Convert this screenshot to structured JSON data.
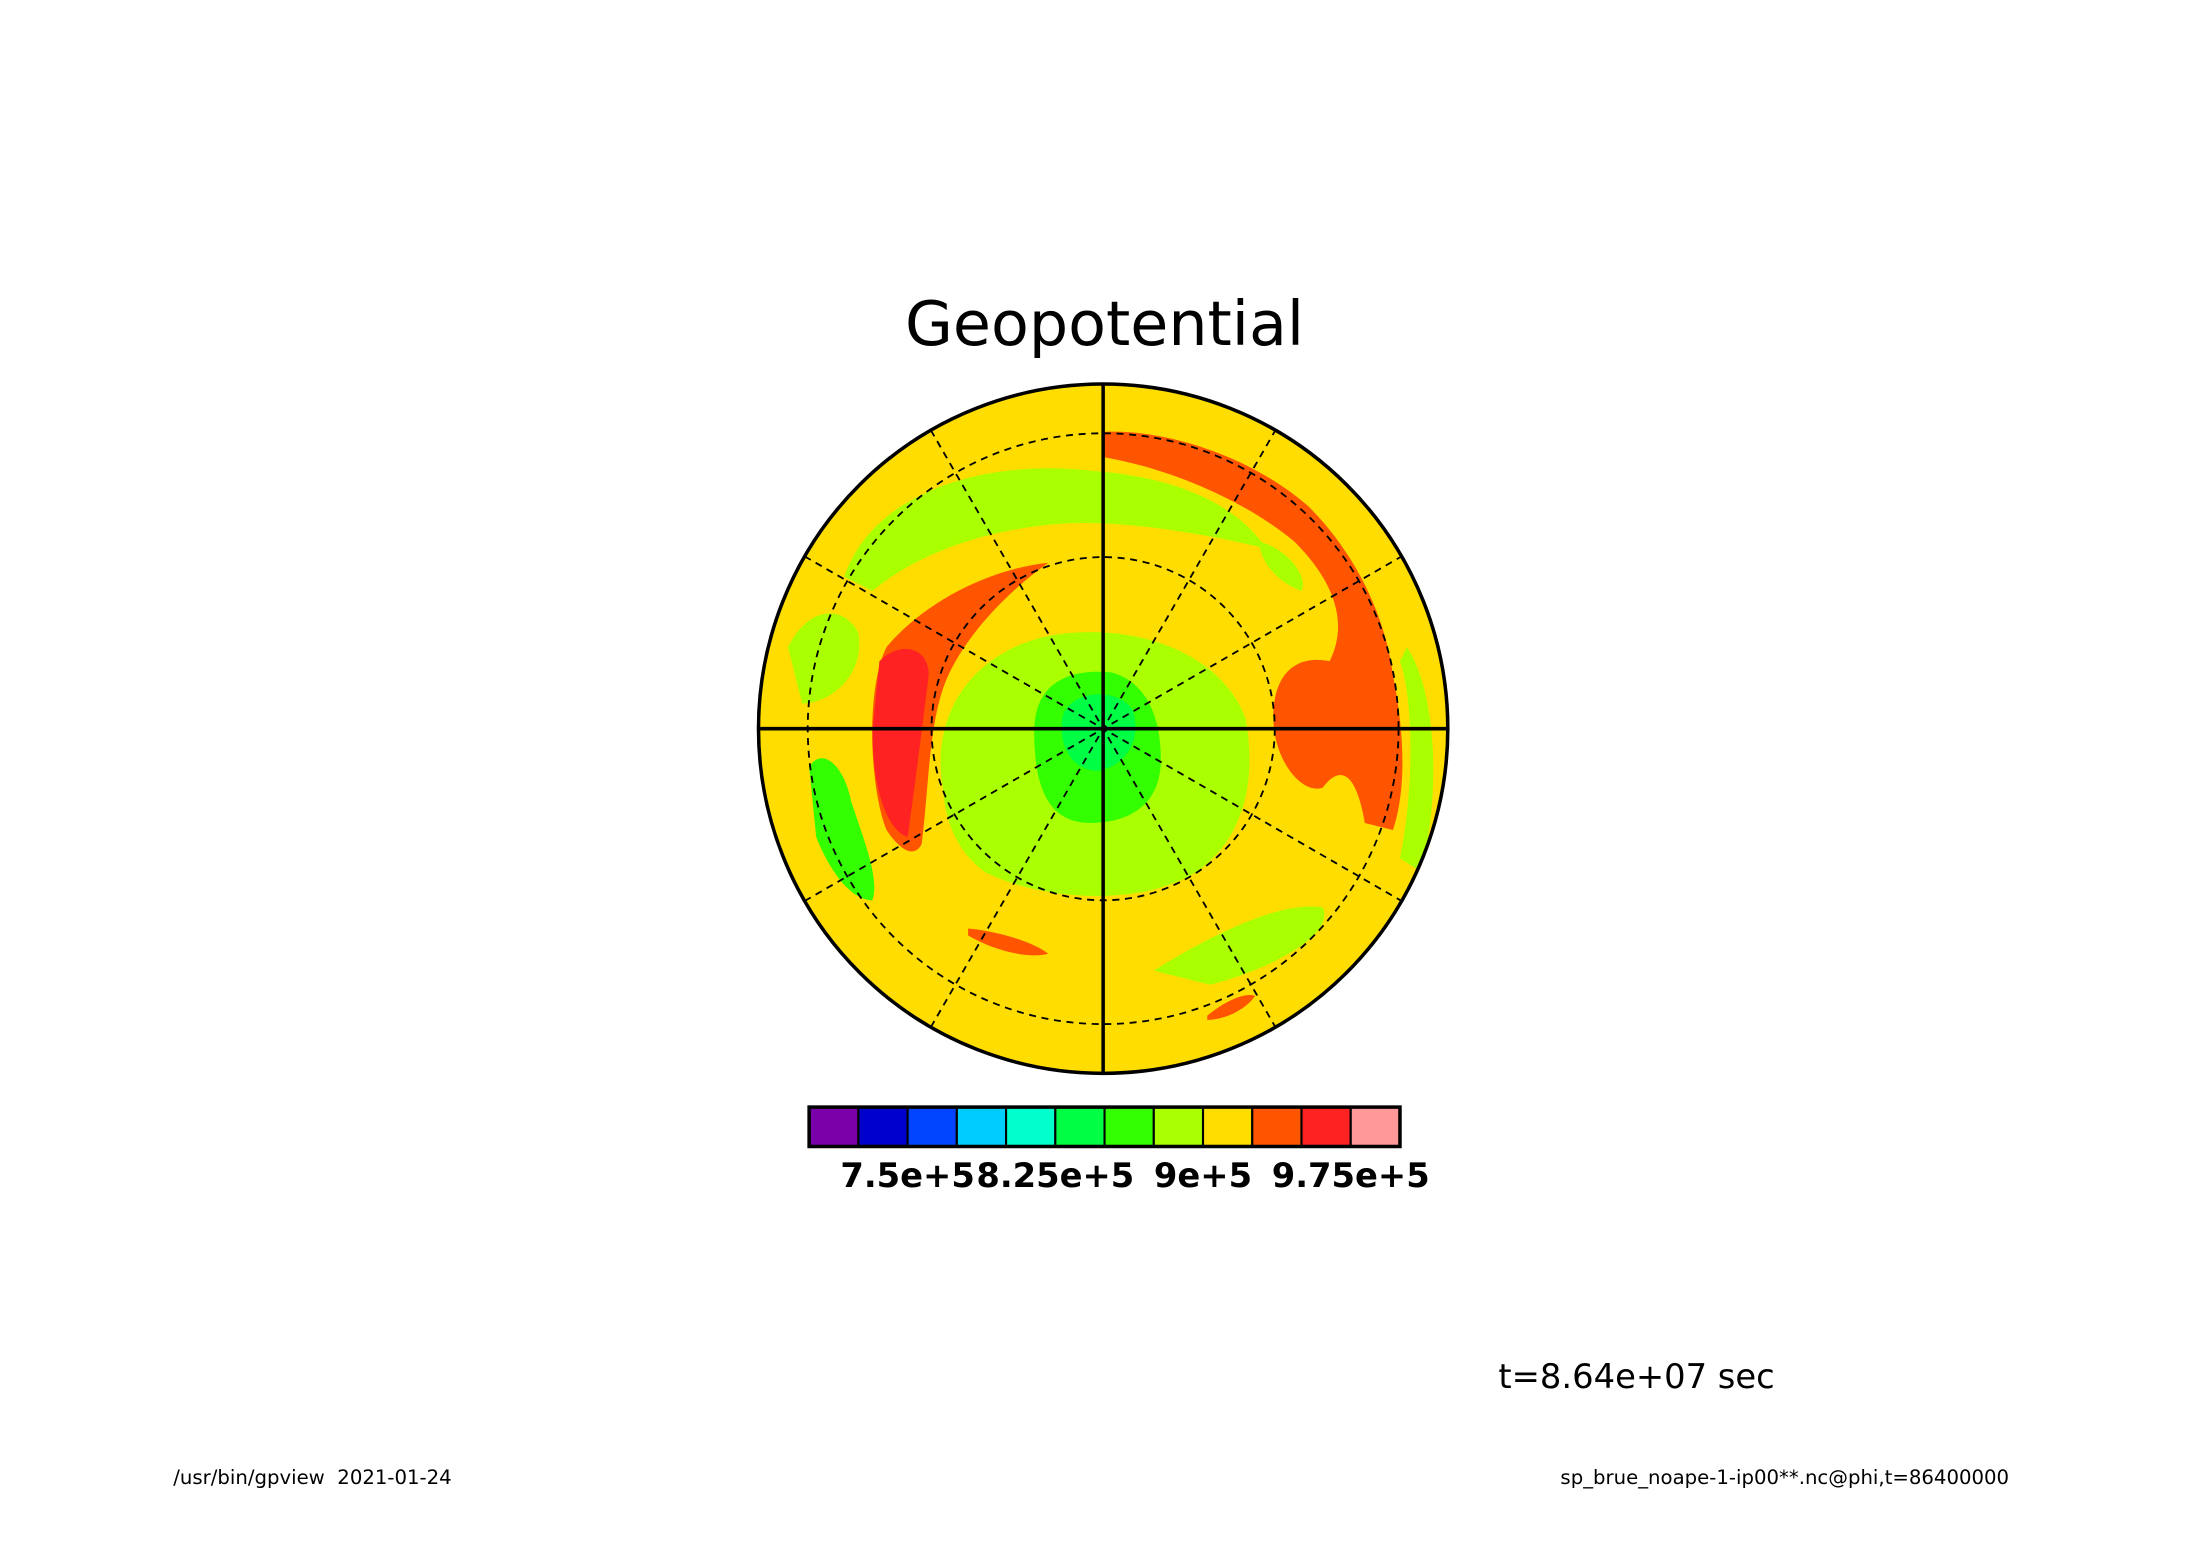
{
  "chart_data": {
    "type": "contour",
    "title": "Geopotential",
    "colorbar": {
      "lim": [
        700000,
        1000000
      ],
      "colors": [
        "#7a00aa",
        "#0000cc",
        "#0044ff",
        "#00ccff",
        "#00ffcc",
        "#00ff44",
        "#33ff00",
        "#aaff00",
        "#ffdd00",
        "#ff5500",
        "#ff2222",
        "#ff9999"
      ],
      "ticks": [
        {
          "value": 750000,
          "label": "7.5e+5"
        },
        {
          "value": 825000,
          "label": "8.25e+5"
        },
        {
          "value": 900000,
          "label": "9e+5"
        },
        {
          "value": 975000,
          "label": "9.75e+5"
        }
      ]
    },
    "annotation": "t=8.64e+07 sec",
    "footer_left": "/usr/bin/gpview  2021-01-24",
    "footer_right": "sp_brue_noape-1-ip00**.nc@phi,t=86400000"
  }
}
